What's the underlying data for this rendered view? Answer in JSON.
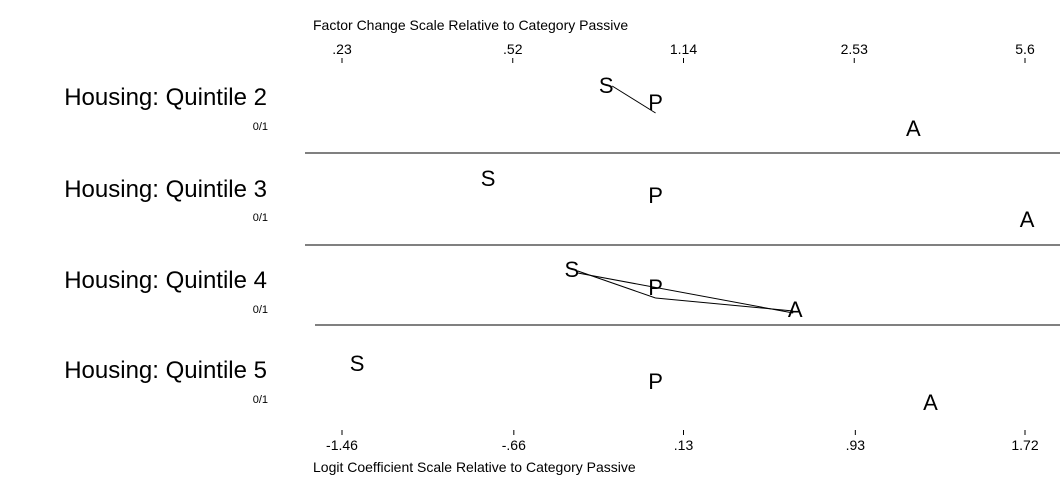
{
  "chart_data": {
    "type": "scatter",
    "title": "",
    "top_axis": {
      "label": "Factor Change Scale Relative to Category Passive",
      "ticks": [
        ".23",
        ".52",
        "1.14",
        "2.53",
        "5.6"
      ]
    },
    "bottom_axis": {
      "label": "Logit Coefficient Scale Relative to Category Passive",
      "ticks": [
        -1.46,
        -0.66,
        0.13,
        0.93,
        1.72
      ],
      "tick_labels": [
        "-1.46",
        "-.66",
        ".13",
        ".93",
        "1.72"
      ],
      "xlim": [
        -1.46,
        1.72
      ]
    },
    "rows": [
      {
        "label": "Housing:  Quintile 2",
        "sublabel": "0/1",
        "points": [
          {
            "letter": "S",
            "x": -0.23,
            "connected": true
          },
          {
            "letter": "P",
            "x": 0.0
          },
          {
            "letter": "A",
            "x": 1.2
          }
        ]
      },
      {
        "label": "Housing:  Quintile 3",
        "sublabel": "0/1",
        "points": [
          {
            "letter": "S",
            "x": -0.78,
            "connected": false
          },
          {
            "letter": "P",
            "x": 0.0
          },
          {
            "letter": "A",
            "x": 1.73
          }
        ]
      },
      {
        "label": "Housing:  Quintile 4",
        "sublabel": "0/1",
        "points": [
          {
            "letter": "S",
            "x": -0.39,
            "connected": true
          },
          {
            "letter": "P",
            "x": 0.0
          },
          {
            "letter": "A",
            "x": 0.65,
            "connected": true
          }
        ]
      },
      {
        "label": "Housing:  Quintile 5",
        "sublabel": "0/1",
        "points": [
          {
            "letter": "S",
            "x": -1.39,
            "connected": false
          },
          {
            "letter": "P",
            "x": 0.0
          },
          {
            "letter": "A",
            "x": 1.28
          }
        ]
      }
    ]
  }
}
